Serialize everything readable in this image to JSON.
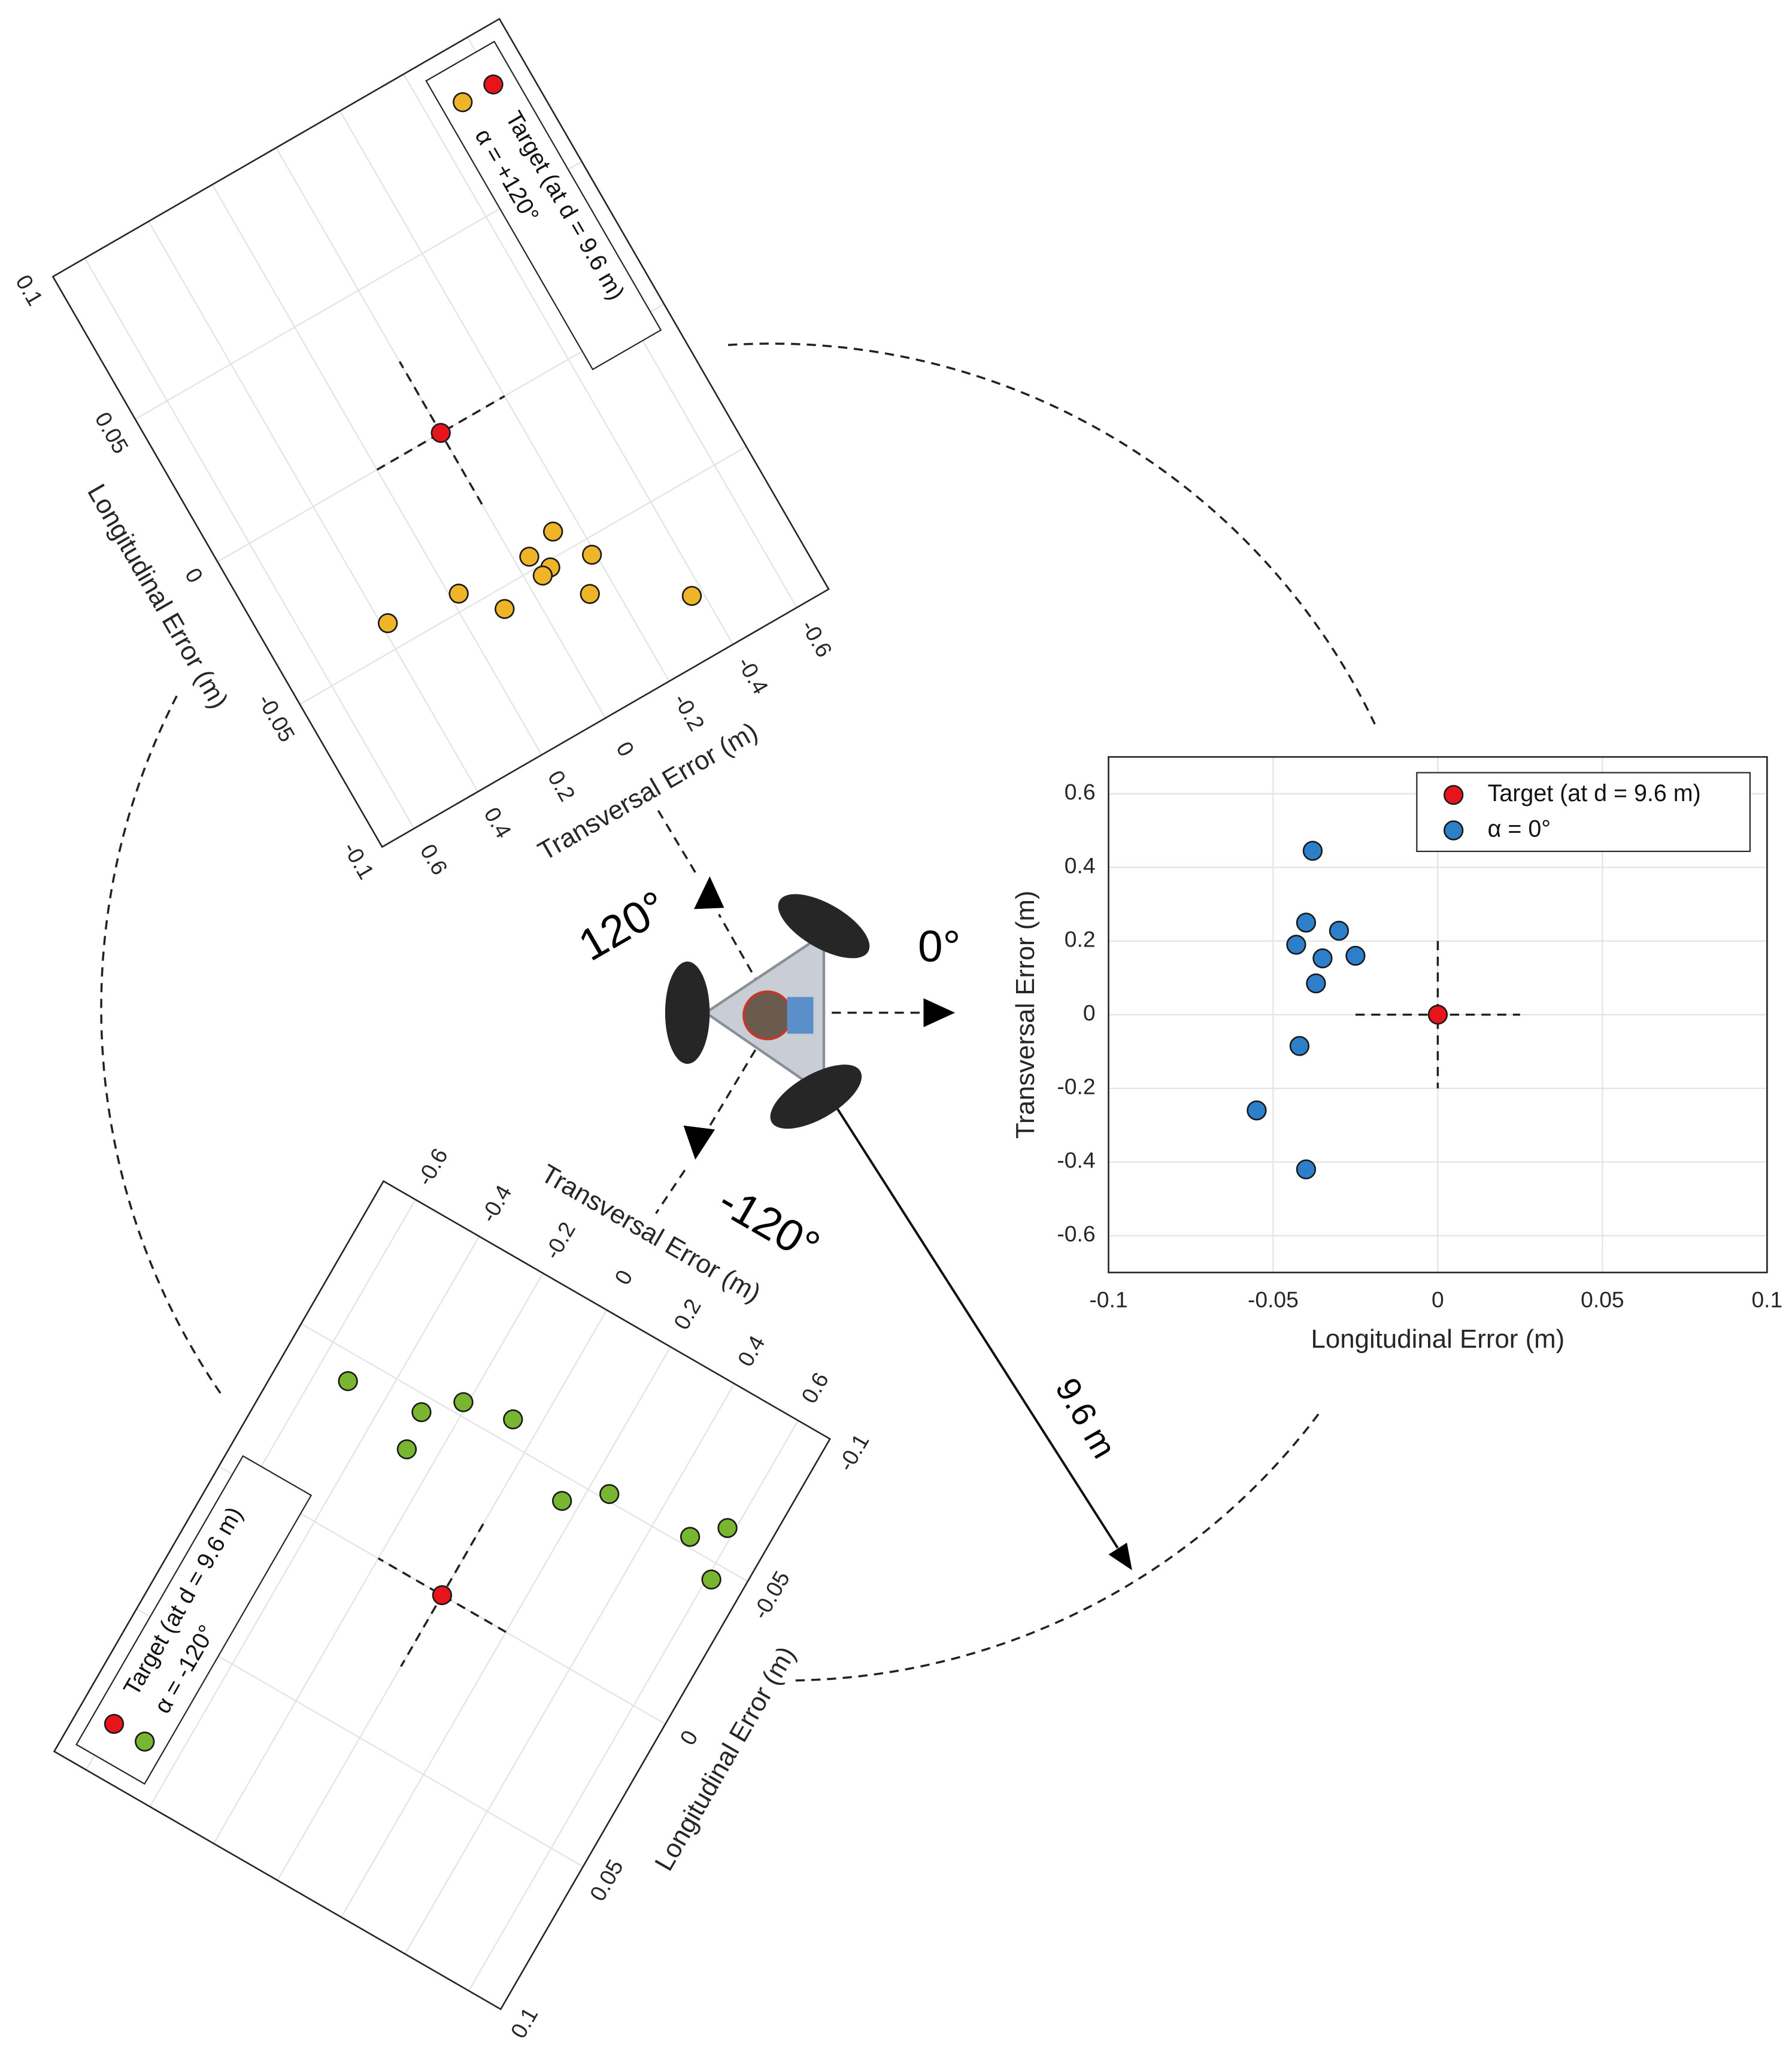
{
  "chart_data": [
    {
      "type": "scatter",
      "xlabel": "Longitudinal Error (m)",
      "ylabel": "Transversal Error (m)",
      "xlim": [
        -0.1,
        0.1
      ],
      "xticks": [
        -0.1,
        -0.05,
        0,
        0.05,
        0.1
      ],
      "ylim": [
        -0.7,
        0.7
      ],
      "yticks": [
        -0.6,
        -0.4,
        -0.2,
        0,
        0.2,
        0.4,
        0.6
      ],
      "grid": true,
      "legend": "upper right",
      "series": [
        {
          "name": "Target (at d = 9.6 m)",
          "color": "#e8141c",
          "x": [
            0
          ],
          "values": [
            0
          ]
        },
        {
          "name": "α = 0°",
          "color": "#2e7fc9",
          "x": [
            -0.038,
            -0.04,
            -0.03,
            -0.043,
            -0.035,
            -0.025,
            -0.037,
            -0.042,
            -0.055,
            -0.04
          ],
          "values": [
            0.445,
            0.25,
            0.228,
            0.19,
            0.153,
            0.16,
            0.085,
            -0.085,
            -0.26,
            -0.42
          ]
        }
      ]
    },
    {
      "type": "scatter",
      "xlabel": "Longitudinal Error (m)",
      "ylabel": "Transversal Error (m)",
      "xlim": [
        -0.1,
        0.1
      ],
      "xticks": [
        -0.1,
        -0.05,
        0,
        0.05,
        0.1
      ],
      "ylim": [
        -0.7,
        0.7
      ],
      "yticks": [
        -0.6,
        -0.4,
        -0.2,
        0,
        0.2,
        0.4,
        0.6
      ],
      "grid": true,
      "legend": "lower right",
      "series": [
        {
          "name": "Target (at d = 9.6 m)",
          "color": "#e8141c",
          "x": [
            0
          ],
          "values": [
            0
          ]
        },
        {
          "name": "α = +120°",
          "color": "#f0b429",
          "x": [
            -0.043,
            -0.046,
            -0.055,
            -0.052,
            -0.053,
            -0.045,
            -0.065,
            -0.056,
            -0.081,
            -0.042
          ],
          "values": [
            -0.13,
            -0.04,
            -0.19,
            -0.075,
            -0.046,
            0.176,
            -0.132,
            0.089,
            -0.369,
            0.383
          ]
        }
      ]
    },
    {
      "type": "scatter",
      "xlabel": "Longitudinal Error (m)",
      "ylabel": "Transversal Error (m)",
      "xlim": [
        -0.1,
        0.1
      ],
      "xticks": [
        -0.1,
        -0.05,
        0,
        0.05,
        0.1
      ],
      "ylim": [
        -0.7,
        0.7
      ],
      "yticks": [
        -0.6,
        -0.4,
        -0.2,
        0,
        0.2,
        0.4,
        0.6
      ],
      "grid": true,
      "legend": "lower right",
      "series": [
        {
          "name": "Target (at d = 9.6 m)",
          "color": "#e8141c",
          "x": [
            0
          ],
          "values": [
            0
          ]
        },
        {
          "name": "α = -120°",
          "color": "#78b531",
          "x": [
            -0.042,
            -0.045,
            -0.054,
            -0.057,
            -0.033,
            -0.043,
            -0.052,
            -0.053,
            -0.061,
            -0.045
          ],
          "values": [
            -0.512,
            -0.297,
            -0.212,
            -0.072,
            -0.281,
            0.154,
            0.256,
            0.504,
            0.58,
            0.612
          ]
        }
      ]
    }
  ],
  "annotations": {
    "angles": [
      "120°",
      "0°",
      "-120°"
    ],
    "distance": "9.6 m"
  }
}
